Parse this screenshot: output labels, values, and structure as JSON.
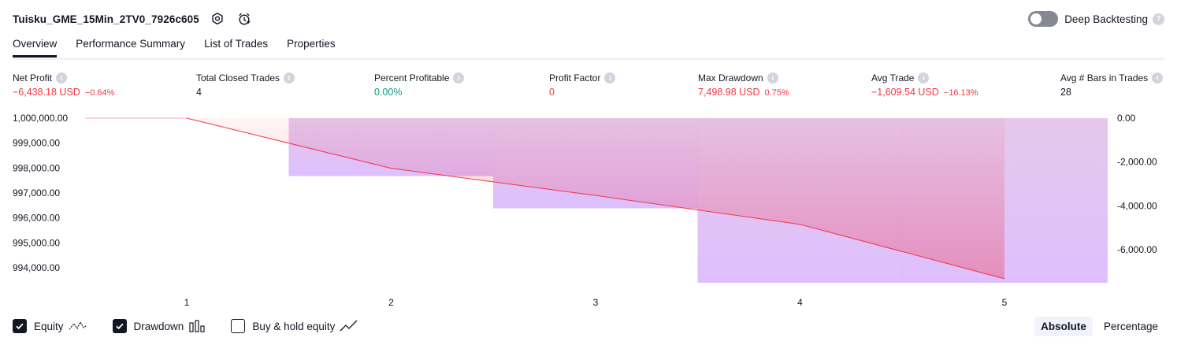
{
  "header": {
    "strategy_name": "Tuisku_GME_15Min_2TV0_7926c605",
    "deep_backtesting_label": "Deep Backtesting",
    "deep_backtesting_enabled": false
  },
  "tabs": [
    {
      "label": "Overview",
      "active": true
    },
    {
      "label": "Performance Summary",
      "active": false
    },
    {
      "label": "List of Trades",
      "active": false
    },
    {
      "label": "Properties",
      "active": false
    }
  ],
  "metrics": {
    "net_profit": {
      "label": "Net Profit",
      "value": "−6,438.18 USD",
      "pct": "−0.64%"
    },
    "total_closed_trades": {
      "label": "Total Closed Trades",
      "value": "4"
    },
    "percent_profitable": {
      "label": "Percent Profitable",
      "value": "0.00%"
    },
    "profit_factor": {
      "label": "Profit Factor",
      "value": "0"
    },
    "max_drawdown": {
      "label": "Max Drawdown",
      "value": "7,498.98 USD",
      "pct": "0.75%"
    },
    "avg_trade": {
      "label": "Avg Trade",
      "value": "−1,609.54 USD",
      "pct": "−16.13%"
    },
    "avg_bars": {
      "label": "Avg # Bars in Trades",
      "value": "28"
    }
  },
  "chart_data": {
    "type": "line",
    "x": [
      "1",
      "2",
      "3",
      "4",
      "5"
    ],
    "y_left_ticks": [
      "1,000,000.00",
      "999,000.00",
      "998,000.00",
      "997,000.00",
      "996,000.00",
      "995,000.00",
      "994,000.00"
    ],
    "y_right_ticks": [
      "0.00",
      "-2,000.00",
      "-4,000.00",
      "-6,000.00"
    ],
    "ylim_left": [
      993400,
      1000000
    ],
    "ylim_right": [
      -7498.98,
      0
    ],
    "series": [
      {
        "name": "Equity",
        "values": [
          1000000,
          997990,
          996900,
          995740,
          993561.82
        ],
        "color": "#f23645"
      },
      {
        "name": "Drawdown",
        "values": [
          -2640,
          -2640,
          -4110,
          -7498.98,
          -7498.98
        ],
        "color": "#ce93d8"
      }
    ],
    "equity_start": 1000000
  },
  "legend": {
    "equity": {
      "label": "Equity",
      "checked": true
    },
    "drawdown": {
      "label": "Drawdown",
      "checked": true
    },
    "buy_hold": {
      "label": "Buy & hold equity",
      "checked": false
    }
  },
  "modes": {
    "absolute": "Absolute",
    "percentage": "Percentage",
    "active": "absolute"
  }
}
